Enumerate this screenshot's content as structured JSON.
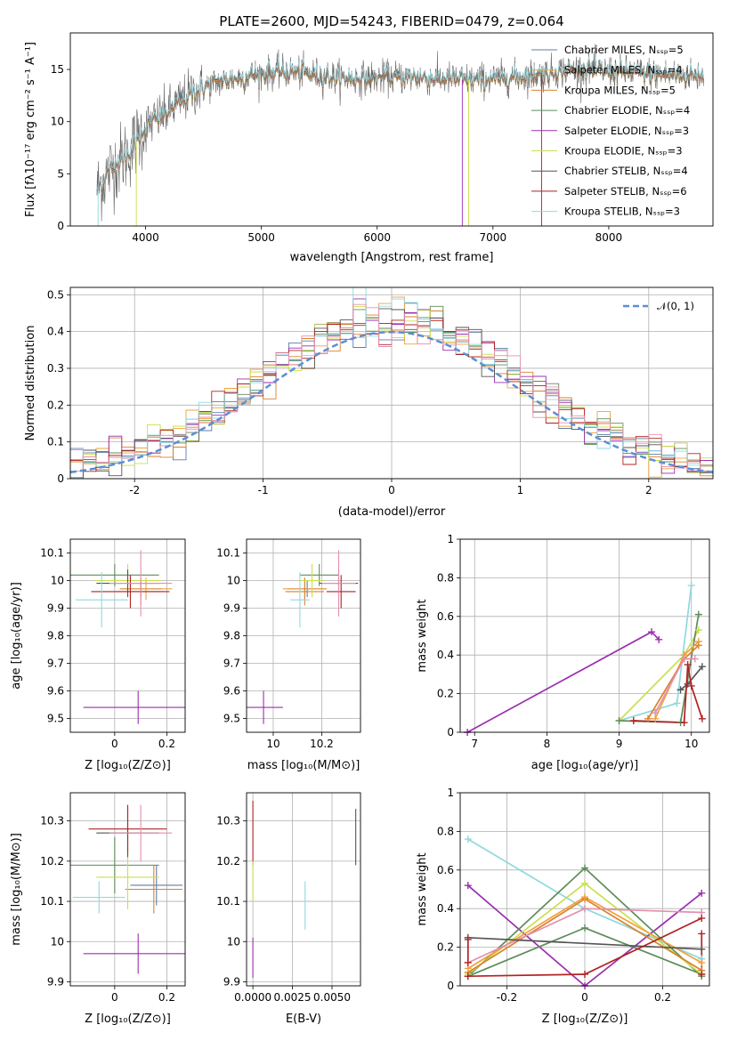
{
  "title": "PLATE=2600, MJD=54243, FIBERID=0479, z=0.064",
  "colors": {
    "Chabrier MILES": "#5b7fa6",
    "Salpeter MILES": "#f2a03d",
    "Kroupa MILES": "#d9822b",
    "Chabrier ELODIE": "#5e8c5a",
    "Salpeter ELODIE": "#9b2fae",
    "Kroupa ELODIE": "#c8e04e",
    "Chabrier STELIB": "#555555",
    "Salpeter STELIB": "#b22222",
    "Kroupa STELIB": "#8fd9e0",
    "extra_pink": "#e58fb0",
    "gauss": "#5b8ed6",
    "grid": "#b0b0b0"
  },
  "chart_data": [
    {
      "id": "spectrum",
      "type": "line",
      "title": "PLATE=2600, MJD=54243, FIBERID=0479, z=0.064",
      "xlabel": "wavelength [Angstrom, rest frame]",
      "ylabel": "Flux [fλ10⁻¹⁷ erg cm⁻² s⁻¹ A⁻¹]",
      "xlim": [
        3350,
        8900
      ],
      "ylim": [
        0,
        18.5
      ],
      "xticks": [
        4000,
        5000,
        6000,
        7000,
        8000
      ],
      "yticks": [
        0,
        5,
        10,
        15
      ],
      "grid": false,
      "legend_position": "top-right",
      "series": [
        {
          "name": "Chabrier MILES, Nₛₛₚ=5"
        },
        {
          "name": "Salpeter MILES, Nₛₛₚ=4"
        },
        {
          "name": "Kroupa MILES, Nₛₛₚ=5"
        },
        {
          "name": "Chabrier ELODIE, Nₛₛₚ=4"
        },
        {
          "name": "Salpeter ELODIE, Nₛₛₚ=3"
        },
        {
          "name": "Kroupa ELODIE, Nₛₛₚ=3"
        },
        {
          "name": "Chabrier STELIB, Nₛₛₚ=4"
        },
        {
          "name": "Salpeter STELIB, Nₛₛₚ=6"
        },
        {
          "name": "Kroupa STELIB, Nₛₛₚ=3"
        }
      ],
      "continuum_x": [
        3580,
        3700,
        3850,
        4000,
        4200,
        4400,
        4600,
        4800,
        5000,
        5200,
        5400,
        5600,
        5800,
        6000,
        6200,
        6400,
        6600,
        6800,
        7000,
        7200,
        7400,
        7600,
        7800,
        8000,
        8200,
        8500,
        8800
      ],
      "continuum_y": [
        3.5,
        5.5,
        7.0,
        9.5,
        11.0,
        12.8,
        13.7,
        14.2,
        14.6,
        14.8,
        14.6,
        14.3,
        14.1,
        14.2,
        14.3,
        14.2,
        14.1,
        14.0,
        14.1,
        14.3,
        14.5,
        14.9,
        15.0,
        14.8,
        14.7,
        14.5,
        14.4
      ]
    },
    {
      "id": "residuals",
      "type": "line",
      "xlabel": "(data-model)/error",
      "ylabel": "Normed distribution",
      "xlim": [
        -2.5,
        2.5
      ],
      "ylim": [
        0,
        0.52
      ],
      "xticks": [
        -2,
        -1,
        0,
        1,
        2
      ],
      "yticks": [
        0.0,
        0.1,
        0.2,
        0.3,
        0.4,
        0.5
      ],
      "grid": true,
      "legend_position": "top-right",
      "gauss_label": "𝒩(0, 1)",
      "bin_width": 0.1
    },
    {
      "id": "Z_vs_age",
      "type": "scatter",
      "xlabel": "Z [log₁₀(Z/Z⊙)]",
      "ylabel": "age  [log₁₀(age/yr)]",
      "xlim": [
        -0.17,
        0.27
      ],
      "ylim": [
        9.45,
        10.15
      ],
      "xticks": [
        0.0,
        0.2
      ],
      "yticks": [
        9.5,
        9.6,
        9.7,
        9.8,
        9.9,
        10.0,
        10.1
      ],
      "grid": true,
      "errorbars": [
        {
          "c": "Chabrier MILES",
          "x": 0.1,
          "xerr": 0.08,
          "y": 9.97,
          "yerr": 0.03
        },
        {
          "c": "Salpeter MILES",
          "x": 0.12,
          "xerr": 0.1,
          "y": 9.97,
          "yerr": 0.04
        },
        {
          "c": "Kroupa MILES",
          "x": 0.1,
          "xerr": 0.09,
          "y": 9.96,
          "yerr": 0.05
        },
        {
          "c": "Chabrier ELODIE",
          "x": 0.0,
          "xerr": 0.17,
          "y": 10.02,
          "yerr": 0.04
        },
        {
          "c": "Salpeter ELODIE",
          "x": 0.09,
          "xerr": 0.21,
          "y": 9.54,
          "yerr": 0.06
        },
        {
          "c": "Kroupa ELODIE",
          "x": 0.05,
          "xerr": 0.13,
          "y": 10.0,
          "yerr": 0.06
        },
        {
          "c": "Chabrier STELIB",
          "x": 0.05,
          "xerr": 0.12,
          "y": 9.99,
          "yerr": 0.05
        },
        {
          "c": "Salpeter STELIB",
          "x": 0.06,
          "xerr": 0.15,
          "y": 9.96,
          "yerr": 0.06
        },
        {
          "c": "Kroupa STELIB",
          "x": -0.05,
          "xerr": 0.1,
          "y": 9.93,
          "yerr": 0.1
        },
        {
          "c": "extra_pink",
          "x": 0.1,
          "xerr": 0.12,
          "y": 9.99,
          "yerr": 0.12
        }
      ]
    },
    {
      "id": "mass_vs_age",
      "type": "scatter",
      "xlabel": "mass [log₁₀(M/M⊙)]",
      "ylabel": "",
      "xlim": [
        9.89,
        10.36
      ],
      "ylim": [
        9.45,
        10.15
      ],
      "xticks": [
        10.0,
        10.2
      ],
      "yticks": [
        9.5,
        9.6,
        9.7,
        9.8,
        9.9,
        10.0,
        10.1
      ],
      "grid": true,
      "errorbars": [
        {
          "c": "Chabrier MILES",
          "x": 10.14,
          "xerr": 0.08,
          "y": 9.97,
          "yerr": 0.03
        },
        {
          "c": "Salpeter MILES",
          "x": 10.13,
          "xerr": 0.09,
          "y": 9.97,
          "yerr": 0.04
        },
        {
          "c": "Kroupa MILES",
          "x": 10.13,
          "xerr": 0.08,
          "y": 9.96,
          "yerr": 0.05
        },
        {
          "c": "Chabrier ELODIE",
          "x": 10.19,
          "xerr": 0.08,
          "y": 10.02,
          "yerr": 0.04
        },
        {
          "c": "Salpeter ELODIE",
          "x": 9.96,
          "xerr": 0.08,
          "y": 9.54,
          "yerr": 0.06
        },
        {
          "c": "Kroupa ELODIE",
          "x": 10.16,
          "xerr": 0.05,
          "y": 10.0,
          "yerr": 0.06
        },
        {
          "c": "Chabrier STELIB",
          "x": 10.27,
          "xerr": 0.08,
          "y": 9.99,
          "yerr": 0.05
        },
        {
          "c": "Salpeter STELIB",
          "x": 10.28,
          "xerr": 0.06,
          "y": 9.96,
          "yerr": 0.06
        },
        {
          "c": "Kroupa STELIB",
          "x": 10.11,
          "xerr": 0.04,
          "y": 9.93,
          "yerr": 0.1
        },
        {
          "c": "extra_pink",
          "x": 10.27,
          "xerr": 0.07,
          "y": 9.99,
          "yerr": 0.12
        }
      ]
    },
    {
      "id": "weight_vs_age",
      "type": "line",
      "xlabel": "age  [log₁₀(age/yr)]",
      "ylabel": "mass weight",
      "xlim": [
        6.8,
        10.25
      ],
      "ylim": [
        0,
        1.0
      ],
      "xticks": [
        7,
        8,
        9,
        10
      ],
      "yticks": [
        0.0,
        0.2,
        0.4,
        0.6,
        0.8,
        1.0
      ],
      "grid": true,
      "series": [
        {
          "c": "Kroupa STELIB",
          "x": [
            9.0,
            9.8,
            10.0
          ],
          "y": [
            0.06,
            0.15,
            0.76
          ]
        },
        {
          "c": "Salpeter ELODIE",
          "x": [
            6.9,
            9.45,
            9.55
          ],
          "y": [
            0.0,
            0.52,
            0.48
          ]
        },
        {
          "c": "Kroupa ELODIE",
          "x": [
            9.0,
            9.9,
            10.1
          ],
          "y": [
            0.06,
            0.4,
            0.53
          ]
        },
        {
          "c": "Chabrier ELODIE",
          "x": [
            9.0,
            9.85,
            10.1
          ],
          "y": [
            0.06,
            0.05,
            0.61
          ]
        },
        {
          "c": "Salpeter MILES",
          "x": [
            9.5,
            9.9,
            10.1
          ],
          "y": [
            0.07,
            0.4,
            0.47
          ]
        },
        {
          "c": "Kroupa MILES",
          "x": [
            9.4,
            9.9,
            10.1
          ],
          "y": [
            0.07,
            0.38,
            0.45
          ]
        },
        {
          "c": "Chabrier STELIB",
          "x": [
            9.85,
            9.95,
            10.15
          ],
          "y": [
            0.22,
            0.25,
            0.34
          ]
        },
        {
          "c": "extra_pink",
          "x": [
            9.5,
            9.9,
            10.05
          ],
          "y": [
            0.1,
            0.38,
            0.38
          ]
        },
        {
          "c": "Salpeter STELIB",
          "x": [
            9.2,
            9.9,
            9.95,
            10.0,
            10.15
          ],
          "y": [
            0.06,
            0.05,
            0.35,
            0.24,
            0.07
          ]
        }
      ]
    },
    {
      "id": "Z_vs_mass",
      "type": "scatter",
      "xlabel": "Z [log₁₀(Z/Z⊙)]",
      "ylabel": "mass [log₁₀(M/M⊙)]",
      "xlim": [
        -0.17,
        0.27
      ],
      "ylim": [
        9.89,
        10.37
      ],
      "xticks": [
        0.0,
        0.2
      ],
      "yticks": [
        9.9,
        10.0,
        10.1,
        10.2,
        10.3
      ],
      "grid": true,
      "errorbars": [
        {
          "c": "Chabrier MILES",
          "x": 0.16,
          "xerr": 0.1,
          "y": 10.14,
          "yerr": 0.05
        },
        {
          "c": "Kroupa MILES",
          "x": 0.15,
          "xerr": 0.11,
          "y": 10.13,
          "yerr": 0.06
        },
        {
          "c": "Chabrier ELODIE",
          "x": 0.0,
          "xerr": 0.17,
          "y": 10.19,
          "yerr": 0.07
        },
        {
          "c": "Salpeter ELODIE",
          "x": 0.09,
          "xerr": 0.21,
          "y": 9.97,
          "yerr": 0.05
        },
        {
          "c": "Kroupa ELODIE",
          "x": 0.05,
          "xerr": 0.12,
          "y": 10.16,
          "yerr": 0.08
        },
        {
          "c": "Chabrier STELIB",
          "x": 0.05,
          "xerr": 0.12,
          "y": 10.27,
          "yerr": 0.06
        },
        {
          "c": "Salpeter STELIB",
          "x": 0.05,
          "xerr": 0.15,
          "y": 10.28,
          "yerr": 0.06
        },
        {
          "c": "Kroupa STELIB",
          "x": -0.06,
          "xerr": 0.1,
          "y": 10.11,
          "yerr": 0.04
        },
        {
          "c": "extra_pink",
          "x": 0.1,
          "xerr": 0.12,
          "y": 10.27,
          "yerr": 0.07
        }
      ]
    },
    {
      "id": "ebv_vs_mass",
      "type": "scatter",
      "xlabel": "E(B-V)",
      "ylabel": "",
      "xlim": [
        -0.0004,
        0.0068
      ],
      "ylim": [
        9.89,
        10.37
      ],
      "xticks": [
        0.0,
        0.0025,
        0.005
      ],
      "xticklabels": [
        "0.0000",
        "0.0025",
        "0.0050"
      ],
      "yticks": [
        9.9,
        10.0,
        10.1,
        10.2,
        10.3
      ],
      "grid": true,
      "errorbars": [
        {
          "c": "Salpeter STELIB",
          "x": 0.0,
          "xerr": 0.0,
          "y": 10.27,
          "yerr": 0.08
        },
        {
          "c": "Kroupa ELODIE",
          "x": 0.0,
          "xerr": 0.0,
          "y": 10.15,
          "yerr": 0.05
        },
        {
          "c": "Salpeter ELODIE",
          "x": 0.0,
          "xerr": 0.0,
          "y": 9.96,
          "yerr": 0.05
        },
        {
          "c": "Kroupa STELIB",
          "x": 0.0033,
          "xerr": 0.0,
          "y": 10.09,
          "yerr": 0.06
        },
        {
          "c": "Chabrier STELIB",
          "x": 0.0065,
          "xerr": 0.0,
          "y": 10.26,
          "yerr": 0.07
        }
      ]
    },
    {
      "id": "weight_vs_Z",
      "type": "line",
      "xlabel": "Z [log₁₀(Z/Z⊙)]",
      "ylabel": "mass weight",
      "xlim": [
        -0.32,
        0.32
      ],
      "ylim": [
        0,
        1.0
      ],
      "xticks": [
        -0.2,
        0.0,
        0.2
      ],
      "yticks": [
        0.0,
        0.2,
        0.4,
        0.6,
        0.8,
        1.0
      ],
      "grid": true,
      "series": [
        {
          "c": "Kroupa STELIB",
          "x": [
            -0.3,
            0.0,
            0.3
          ],
          "y": [
            0.76,
            0.4,
            0.14
          ]
        },
        {
          "c": "Salpeter ELODIE",
          "x": [
            -0.3,
            0.0,
            0.3
          ],
          "y": [
            0.52,
            0.0,
            0.48
          ]
        },
        {
          "c": "Chabrier ELODIE",
          "x": [
            -0.3,
            0.0,
            0.3
          ],
          "y": [
            0.05,
            0.61,
            0.05
          ]
        },
        {
          "c": "Chabrier ELODIE",
          "x": [
            -0.3,
            0.0,
            0.3
          ],
          "y": [
            0.05,
            0.3,
            0.06
          ]
        },
        {
          "c": "Kroupa ELODIE",
          "x": [
            -0.3,
            0.0,
            0.3
          ],
          "y": [
            0.06,
            0.53,
            0.06
          ]
        },
        {
          "c": "Kroupa MILES",
          "x": [
            -0.3,
            0.0,
            0.3
          ],
          "y": [
            0.07,
            0.45,
            0.08
          ]
        },
        {
          "c": "Salpeter MILES",
          "x": [
            -0.3,
            0.0,
            0.3
          ],
          "y": [
            0.09,
            0.46,
            0.12
          ]
        },
        {
          "c": "extra_pink",
          "x": [
            -0.3,
            0.0,
            0.3
          ],
          "y": [
            0.12,
            0.4,
            0.38
          ]
        },
        {
          "c": "Chabrier STELIB",
          "x": [
            -0.3,
            0.3
          ],
          "y": [
            0.25,
            0.19
          ]
        },
        {
          "c": "Salpeter STELIB",
          "x": [
            -0.3,
            0.0,
            0.3
          ],
          "y": [
            0.05,
            0.06,
            0.35
          ]
        },
        {
          "c": "Salpeter STELIB",
          "x": [
            -0.3,
            -0.3
          ],
          "y": [
            0.24,
            0.12
          ]
        },
        {
          "c": "Salpeter STELIB",
          "x": [
            0.3,
            0.3
          ],
          "y": [
            0.27,
            0.06
          ]
        }
      ]
    }
  ]
}
